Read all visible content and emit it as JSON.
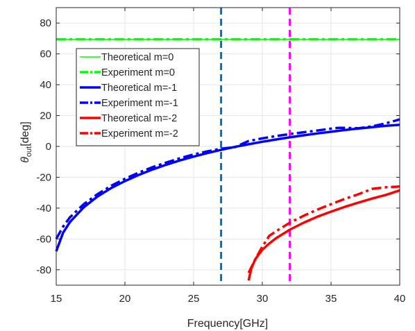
{
  "chart_data": {
    "type": "line",
    "xlabel": "Frequency[GHz]",
    "ylabel": {
      "symbol": "θ",
      "subscript": "out",
      "suffix": "[deg]"
    },
    "xlim": [
      15,
      40
    ],
    "ylim": [
      -90,
      90
    ],
    "xticks": [
      15,
      20,
      25,
      30,
      35,
      40
    ],
    "yticks": [
      -80,
      -60,
      -40,
      -20,
      0,
      20,
      40,
      60,
      80
    ],
    "grid": true,
    "legend_position": "upper-left",
    "series": [
      {
        "name": "Theoretical m=0",
        "color": "#00ff00",
        "style": "solid",
        "width": 1.5,
        "x": [
          15,
          40
        ],
        "y": [
          69.5,
          69.5
        ]
      },
      {
        "name": "Experiment m=0",
        "color": "#00ff00",
        "style": "dashdot",
        "width": 3.5,
        "x": [
          15,
          40
        ],
        "y": [
          69.5,
          69.5
        ]
      },
      {
        "name": "Theoretical m=-1",
        "color": "#0000ff",
        "style": "solid",
        "width": 3.5,
        "x": [
          15,
          15.5,
          16,
          17,
          18,
          19,
          20,
          21,
          22,
          23,
          24,
          25,
          26,
          27,
          28,
          29,
          30,
          31,
          32,
          33,
          34,
          35,
          36,
          37,
          38,
          39,
          40
        ],
        "y": [
          -68,
          -56,
          -49,
          -39.5,
          -32.5,
          -27,
          -22.5,
          -18.5,
          -15,
          -11.9,
          -9.1,
          -6.6,
          -4.3,
          -2.2,
          -0.3,
          1.4,
          3,
          4.5,
          5.9,
          7.2,
          8.4,
          9.5,
          10.6,
          11.6,
          12.5,
          13.4,
          14
        ]
      },
      {
        "name": "Experiment m=-1",
        "color": "#0000ff",
        "style": "dashdot",
        "width": 3.5,
        "x": [
          15,
          15.5,
          16,
          17,
          18,
          19,
          20,
          21,
          22,
          23,
          24,
          25,
          26,
          27,
          28,
          29,
          30,
          31,
          32,
          33,
          34,
          35,
          35.5,
          36,
          37,
          38,
          39,
          40
        ],
        "y": [
          -60,
          -52,
          -46,
          -37.5,
          -31,
          -25.5,
          -21,
          -17,
          -13.5,
          -10.5,
          -7.7,
          -5.2,
          -3.2,
          -1.5,
          -0.5,
          3.5,
          5.2,
          6.7,
          8,
          9.2,
          10.3,
          11.5,
          12,
          12,
          11.8,
          13,
          15,
          17.5
        ]
      },
      {
        "name": "Theoretical m=-2",
        "color": "#ff0000",
        "style": "solid",
        "width": 3.5,
        "x": [
          29,
          29.2,
          29.5,
          30,
          30.5,
          31,
          32,
          33,
          34,
          35,
          36,
          37,
          38,
          39,
          40
        ],
        "y": [
          -87,
          -79,
          -73,
          -67,
          -63,
          -59.5,
          -54,
          -49.5,
          -45.6,
          -42.3,
          -39.2,
          -36.4,
          -33.8,
          -31.4,
          -28.5
        ]
      },
      {
        "name": "Experiment m=-2",
        "color": "#ff0000",
        "style": "dashdot",
        "width": 3.5,
        "x": [
          29,
          29.5,
          30,
          30.5,
          31,
          32,
          33,
          34,
          35,
          36,
          37,
          38,
          39,
          40
        ],
        "y": [
          -82,
          -73,
          -65,
          -58,
          -55,
          -49.5,
          -45,
          -41,
          -37.5,
          -34,
          -31,
          -27.5,
          -26.5,
          -26
        ]
      }
    ],
    "vlines": [
      {
        "x": 27,
        "color": "#0072bd",
        "style": "dashed"
      },
      {
        "x": 32,
        "color": "#ff00ff",
        "style": "dashed"
      }
    ]
  }
}
